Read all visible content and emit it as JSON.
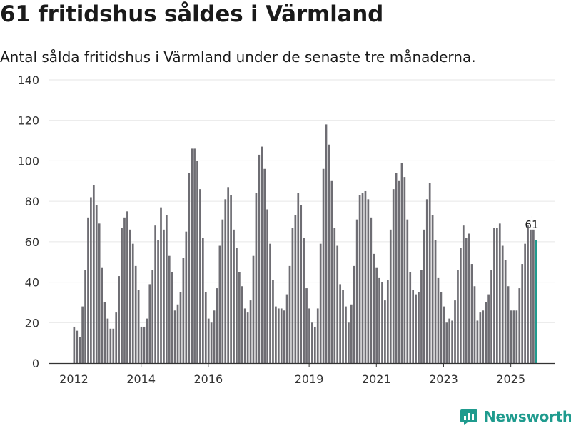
{
  "title": "61 fritidshus såldes i Värmland",
  "subtitle": "Antal sålda fritidshus i Värmland under de senaste tre månaderna.",
  "brand": {
    "name": "Newsworthy"
  },
  "colors": {
    "bar": "#6e6d73",
    "highlight": "#1f9b8e",
    "grid": "#e6e6e6",
    "axis": "#333333"
  },
  "chart_data": {
    "type": "bar",
    "title": "",
    "xlabel": "",
    "ylabel": "",
    "ylim": [
      0,
      140
    ],
    "yticks": [
      0,
      20,
      40,
      60,
      80,
      100,
      120,
      140
    ],
    "xtick_labels": [
      "2012",
      "2014",
      "2016",
      "2019",
      "2021",
      "2023",
      "2025"
    ],
    "grid": "horizontal",
    "period": "rolling three-month total, monthly, January 2012 – last month shown",
    "values": [
      18,
      16,
      13,
      28,
      46,
      72,
      82,
      88,
      78,
      69,
      47,
      30,
      22,
      17,
      17,
      25,
      43,
      67,
      72,
      75,
      66,
      59,
      48,
      36,
      18,
      18,
      22,
      39,
      46,
      68,
      61,
      77,
      66,
      73,
      53,
      45,
      26,
      29,
      35,
      52,
      65,
      94,
      106,
      106,
      100,
      86,
      62,
      35,
      22,
      20,
      26,
      37,
      58,
      71,
      81,
      87,
      83,
      66,
      57,
      45,
      38,
      27,
      25,
      31,
      53,
      84,
      103,
      107,
      96,
      76,
      59,
      41,
      28,
      27,
      27,
      26,
      34,
      48,
      67,
      73,
      84,
      78,
      62,
      37,
      27,
      20,
      18,
      27,
      59,
      96,
      118,
      108,
      90,
      67,
      58,
      39,
      36,
      28,
      20,
      29,
      48,
      71,
      83,
      84,
      85,
      81,
      72,
      54,
      47,
      42,
      40,
      31,
      41,
      66,
      86,
      94,
      90,
      99,
      92,
      71,
      45,
      36,
      34,
      35,
      46,
      66,
      81,
      89,
      73,
      61,
      42,
      35,
      28,
      20,
      22,
      21,
      31,
      46,
      57,
      68,
      62,
      64,
      49,
      38,
      21,
      25,
      26,
      30,
      34,
      46,
      67,
      67,
      69,
      58,
      51,
      38,
      26,
      26,
      26,
      37,
      49,
      59,
      68,
      66,
      66,
      61
    ],
    "highlight": {
      "index": 165,
      "value": 61,
      "label": "61"
    }
  }
}
